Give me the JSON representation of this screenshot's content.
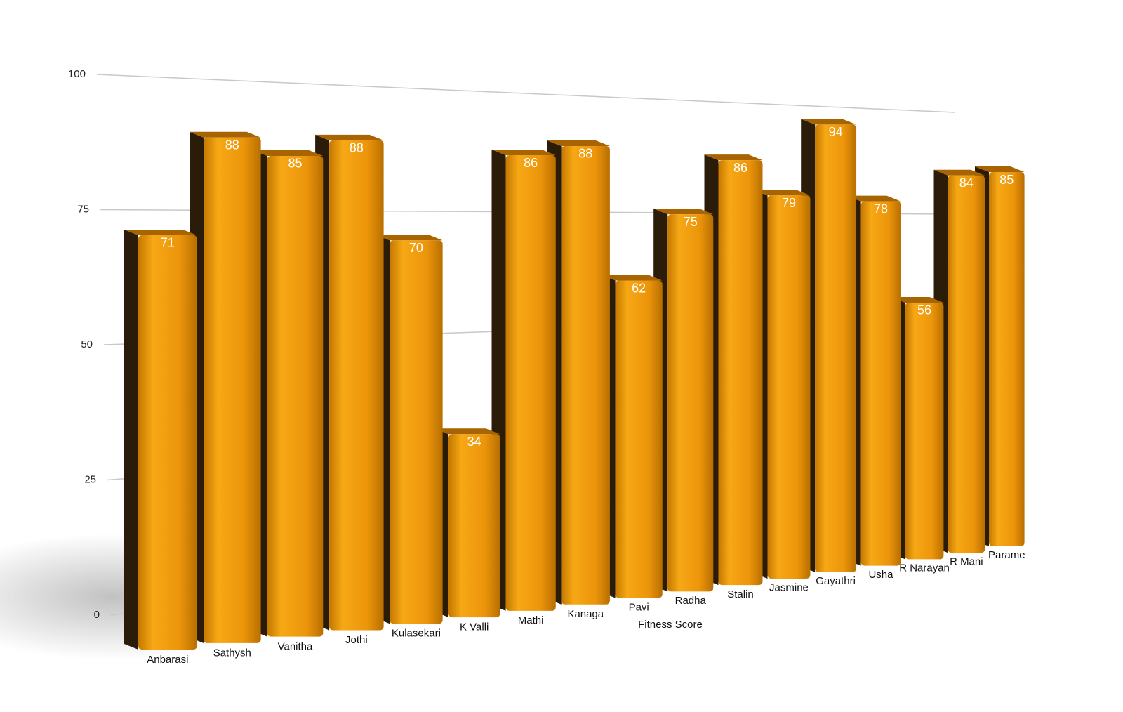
{
  "chart_data": {
    "type": "bar",
    "x_label": "Fitness Score",
    "categories": [
      "Anbarasi",
      "Sathysh",
      "Vanitha",
      "Jothi",
      "Kulasekari",
      "K Valli",
      "Mathi",
      "Kanaga",
      "Pavi",
      "Radha",
      "Stalin",
      "Jasmine",
      "Gayathri",
      "Usha",
      "R Narayan",
      "R Mani",
      "Parame"
    ],
    "values": [
      71,
      88,
      85,
      88,
      70,
      34,
      86,
      88,
      62,
      75,
      86,
      79,
      94,
      78,
      56,
      84,
      85
    ],
    "color": "#f29e0e",
    "ylim": [
      0,
      100
    ],
    "yticks": [
      0,
      25,
      50,
      75,
      100
    ],
    "grid": true
  }
}
